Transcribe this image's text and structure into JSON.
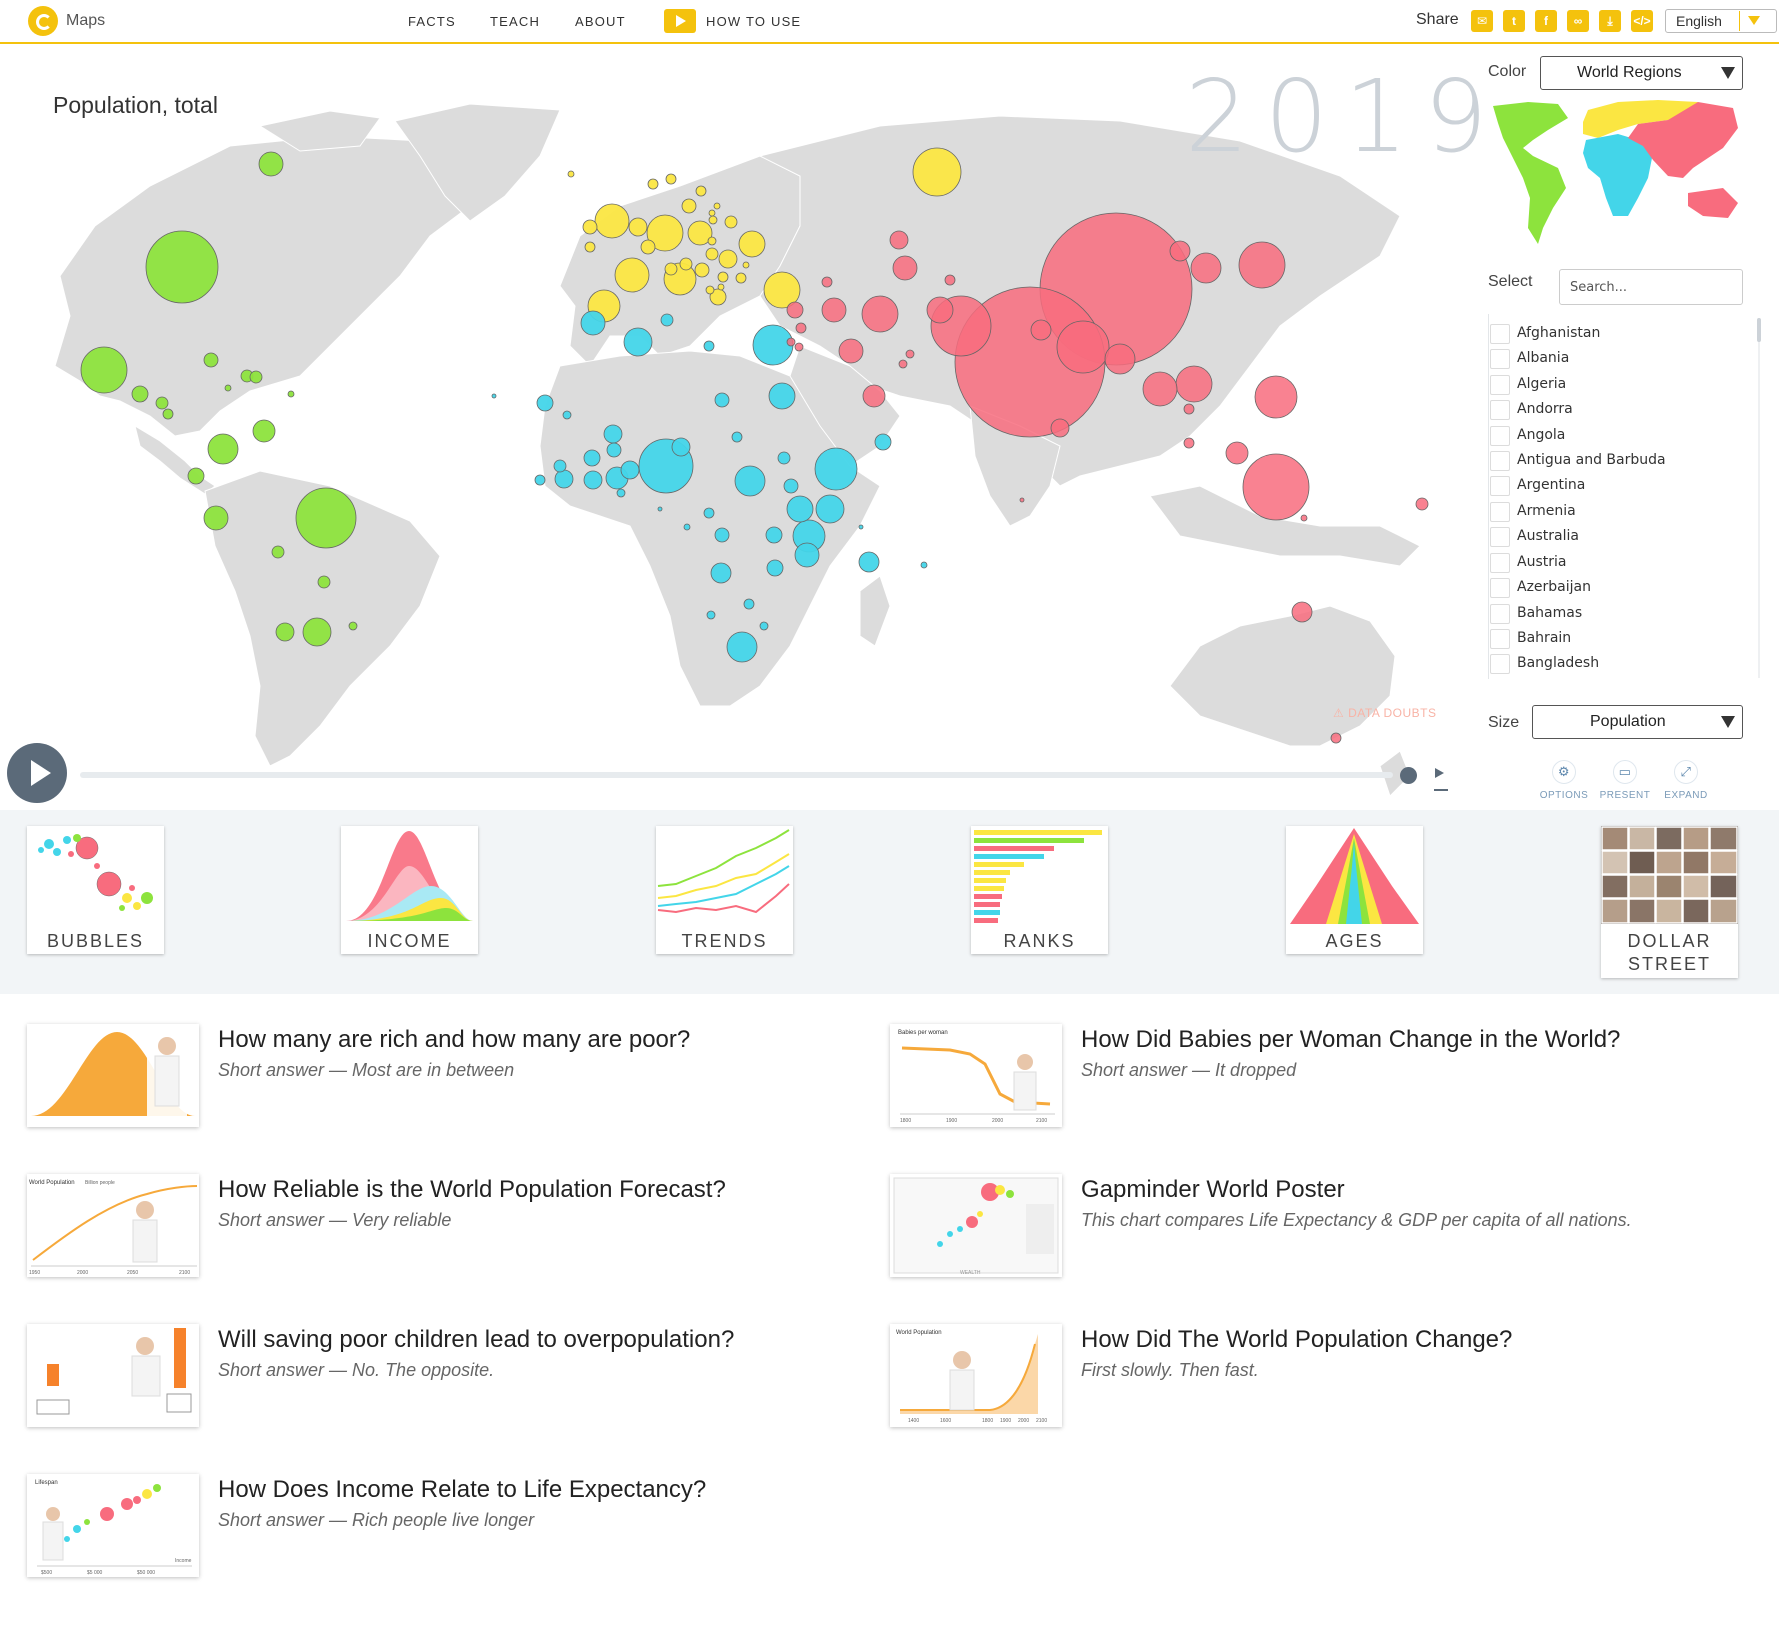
{
  "header": {
    "app_name": "Maps",
    "nav": [
      "FACTS",
      "TEACH",
      "ABOUT",
      "HOW TO USE"
    ],
    "share_label": "Share",
    "share_icons": [
      "mail-icon",
      "twitter-icon",
      "facebook-icon",
      "link-icon",
      "download-icon",
      "embed-icon"
    ],
    "language": "English"
  },
  "chart": {
    "title": "Population, total",
    "year": "2019",
    "data_doubts": "DATA DOUBTS"
  },
  "panel": {
    "color_label": "Color",
    "color_value": "World Regions",
    "select_label": "Select",
    "search_placeholder": "Search...",
    "countries": [
      "Afghanistan",
      "Albania",
      "Algeria",
      "Andorra",
      "Angola",
      "Antigua and Barbuda",
      "Argentina",
      "Armenia",
      "Australia",
      "Austria",
      "Azerbaijan",
      "Bahamas",
      "Bahrain",
      "Bangladesh"
    ],
    "size_label": "Size",
    "size_value": "Population",
    "buttons": [
      "OPTIONS",
      "PRESENT",
      "EXPAND"
    ]
  },
  "regions": {
    "americas": "#8de33d",
    "europe": "#fbe642",
    "africa": "#43d5e9",
    "asia": "#f86c7e"
  },
  "tools": [
    "BUBBLES",
    "INCOME",
    "TRENDS",
    "RANKS",
    "AGES",
    "DOLLAR STREET"
  ],
  "videos": [
    {
      "title": "How many are rich and how many are poor?",
      "subtitle": "Short answer — Most are in between"
    },
    {
      "title": "How Did Babies per Woman Change in the World?",
      "subtitle": "Short answer — It dropped"
    },
    {
      "title": "How Reliable is the World Population Forecast?",
      "subtitle": "Short answer — Very reliable"
    },
    {
      "title": "Gapminder World Poster",
      "subtitle": "This chart compares Life Expectancy & GDP per capita of all nations."
    },
    {
      "title": "Will saving poor children lead to overpopulation?",
      "subtitle": "Short answer — No. The opposite."
    },
    {
      "title": "How Did The World Population Change?",
      "subtitle": "First slowly. Then fast."
    },
    {
      "title": "How Does Income Relate to Life Expectancy?",
      "subtitle": "Short answer — Rich people live longer"
    }
  ],
  "thumb_text": {
    "babies_label": "Babies per woman",
    "babies_years": [
      "1800",
      "1900",
      "2000",
      "2100"
    ],
    "forecast_label": "World Population",
    "forecast_unit": "Billion people",
    "forecast_years": [
      "1950",
      "2000",
      "2050",
      "2100"
    ],
    "pop_label": "World Population",
    "pop_years": [
      "1400",
      "1600",
      "1800",
      "1900",
      "2000",
      "2100"
    ],
    "life_label": "Lifespan",
    "life_ticks": [
      "$500",
      "$5 000",
      "$50 000"
    ],
    "life_axis": "Income",
    "poster_axis": "WEALTH"
  }
}
